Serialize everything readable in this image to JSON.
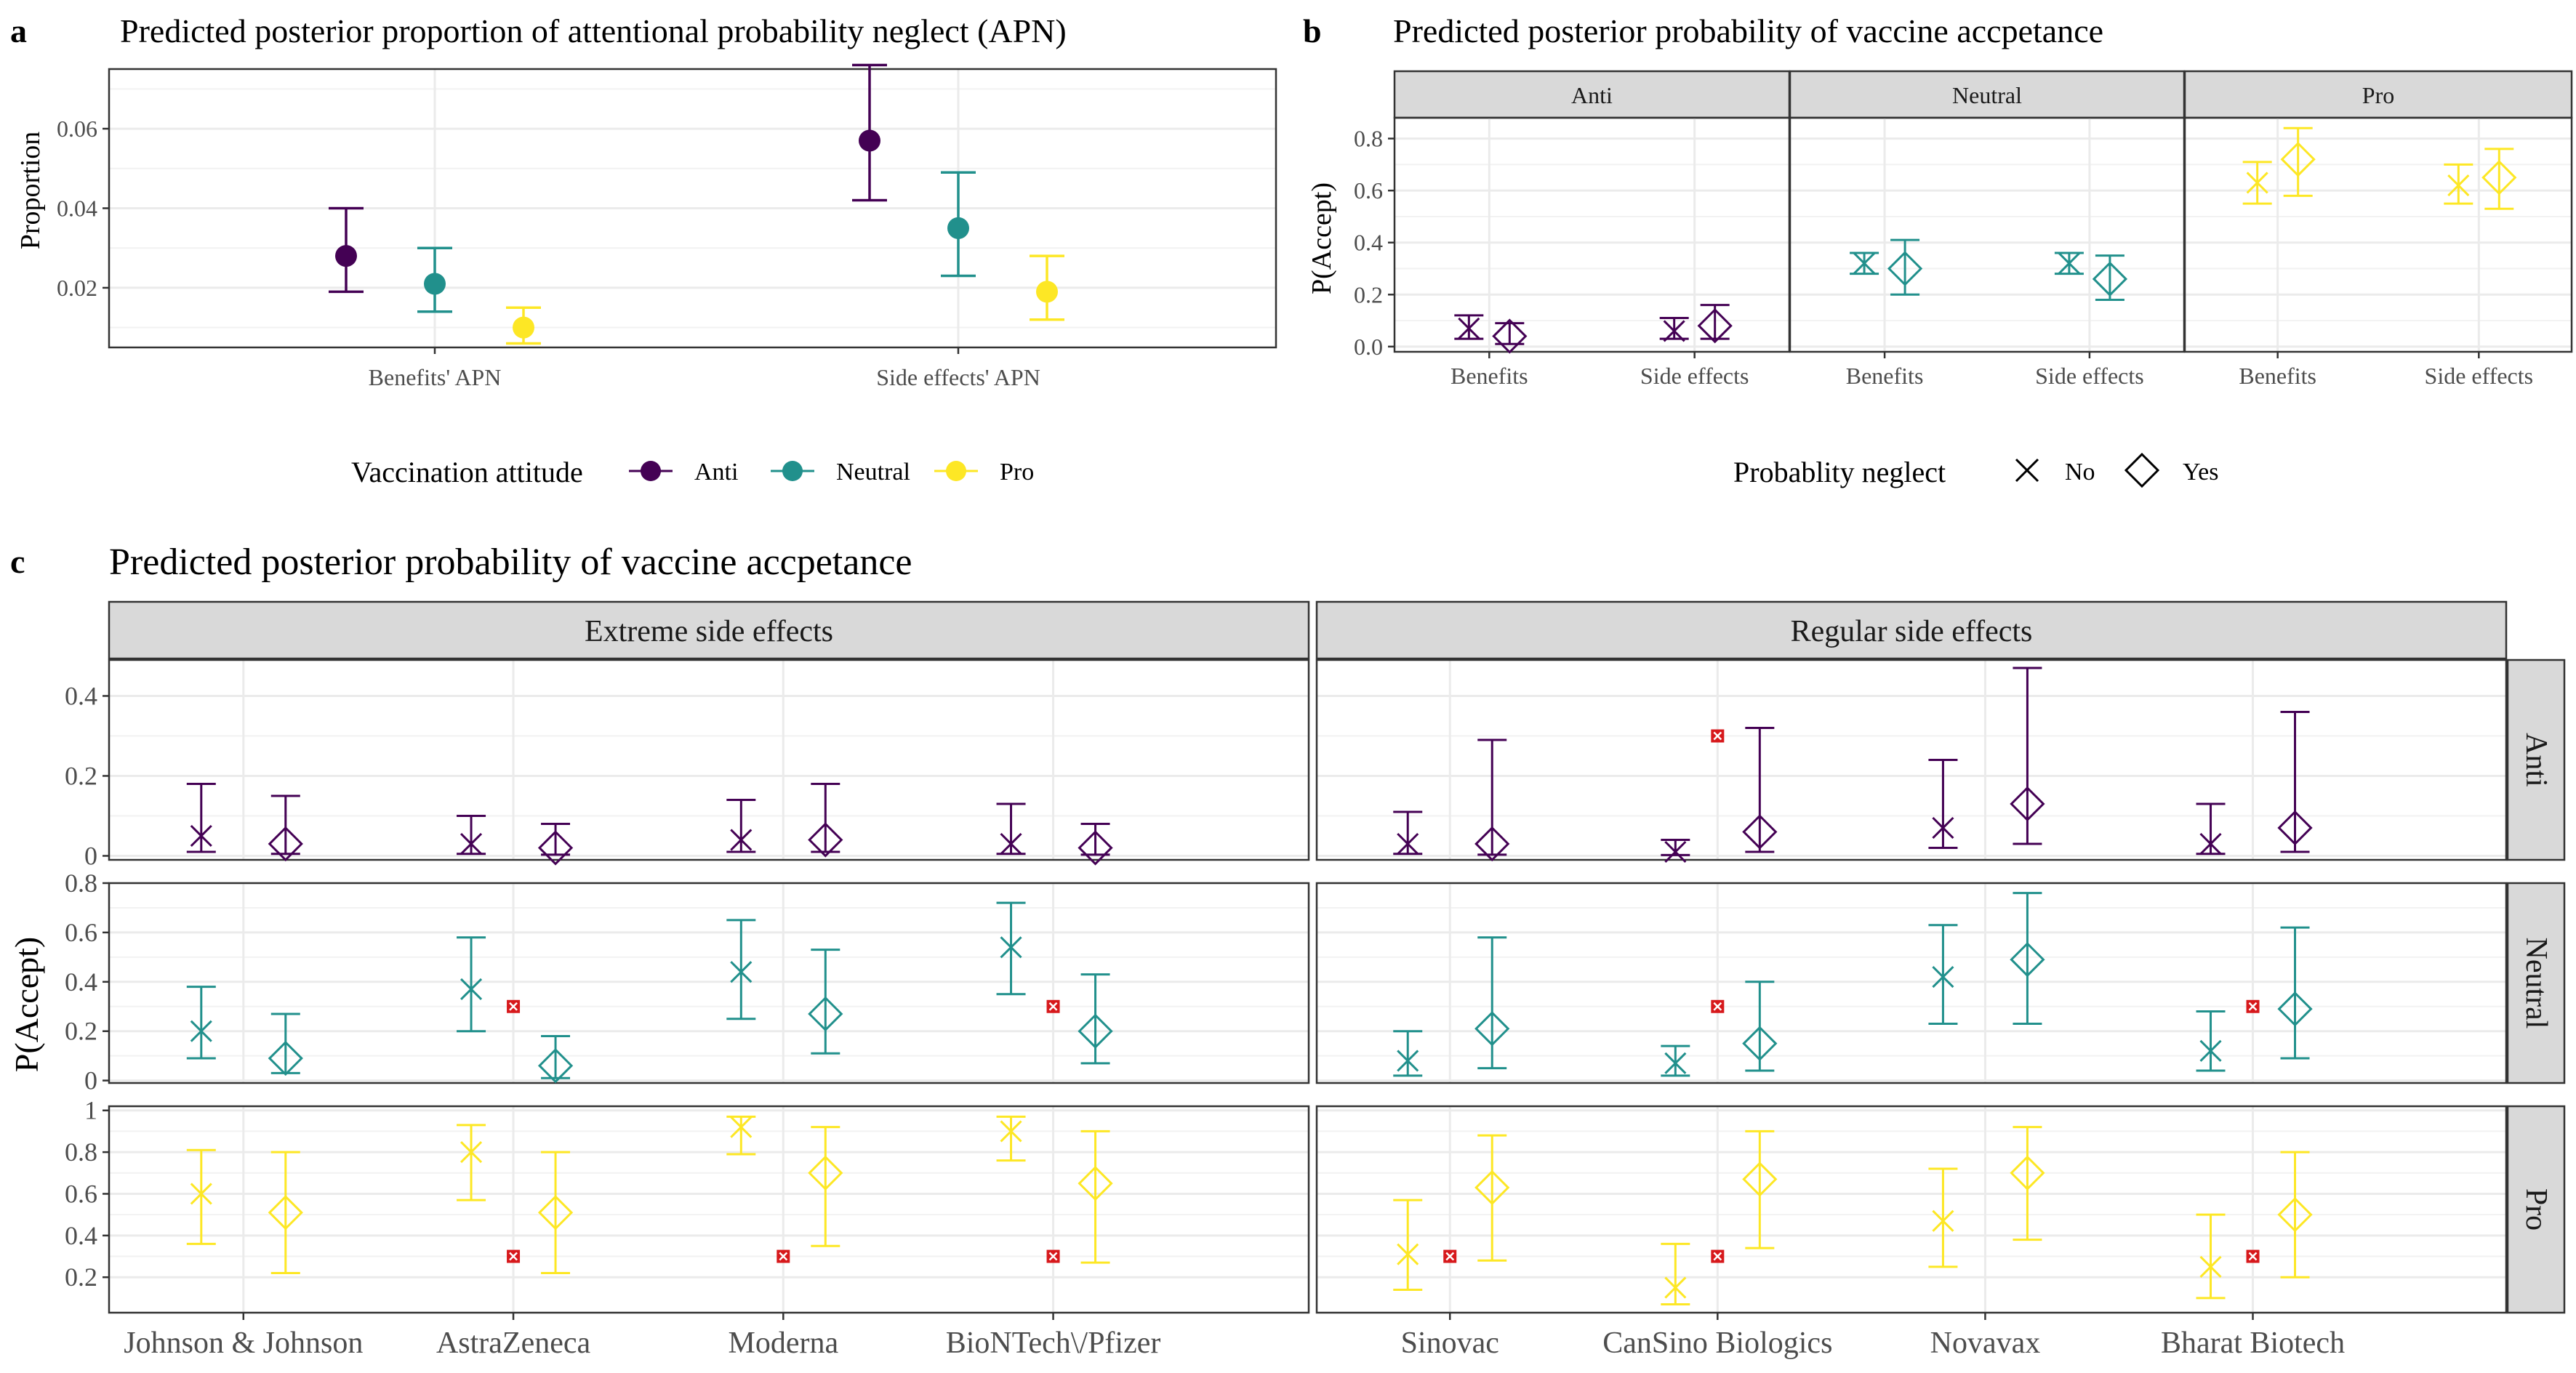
{
  "colors": {
    "Anti": "#440154",
    "Neutral": "#21908c",
    "Pro": "#fde725",
    "marker": "#d7191c"
  },
  "panel_labels": {
    "a": "a",
    "b": "b",
    "c": "c"
  },
  "legend_a": {
    "title": "Vaccination attitude",
    "items": [
      "Anti",
      "Neutral",
      "Pro"
    ]
  },
  "legend_b": {
    "title": "Probablity neglect",
    "items": [
      "No",
      "Yes"
    ]
  },
  "chart_data": [
    {
      "id": "a",
      "type": "scatter",
      "title": "Predicted posterior proportion of attentional probability neglect (APN)",
      "ylabel": "Proportion",
      "xlabel": "",
      "categories": [
        "Benefits' APN",
        "Side effects' APN"
      ],
      "ylim": [
        0.005,
        0.075
      ],
      "yticks": [
        "0.02",
        "0.04",
        "0.06"
      ],
      "series": [
        {
          "name": "Anti",
          "values": [
            0.028,
            0.057
          ],
          "lower": [
            0.019,
            0.042
          ],
          "upper": [
            0.04,
            0.076
          ]
        },
        {
          "name": "Neutral",
          "values": [
            0.021,
            0.035
          ],
          "lower": [
            0.014,
            0.023
          ],
          "upper": [
            0.03,
            0.049
          ]
        },
        {
          "name": "Pro",
          "values": [
            0.01,
            0.019
          ],
          "lower": [
            0.006,
            0.012
          ],
          "upper": [
            0.015,
            0.028
          ]
        }
      ]
    },
    {
      "id": "b",
      "type": "scatter",
      "title": "Predicted posterior probability of vaccine accpetance",
      "ylabel": "P(Accept)",
      "xlabel": "",
      "facets": [
        "Anti",
        "Neutral",
        "Pro"
      ],
      "categories": [
        "Benefits",
        "Side effects"
      ],
      "ylim": [
        -0.02,
        0.88
      ],
      "yticks": [
        "0.0",
        "0.2",
        "0.4",
        "0.6",
        "0.8"
      ],
      "series": [
        {
          "facet": "Anti",
          "neglect": "No",
          "values": [
            0.07,
            0.06
          ],
          "lower": [
            0.03,
            0.03
          ],
          "upper": [
            0.12,
            0.11
          ]
        },
        {
          "facet": "Anti",
          "neglect": "Yes",
          "values": [
            0.04,
            0.08
          ],
          "lower": [
            0.01,
            0.03
          ],
          "upper": [
            0.09,
            0.16
          ]
        },
        {
          "facet": "Neutral",
          "neglect": "No",
          "values": [
            0.32,
            0.32
          ],
          "lower": [
            0.28,
            0.28
          ],
          "upper": [
            0.36,
            0.36
          ]
        },
        {
          "facet": "Neutral",
          "neglect": "Yes",
          "values": [
            0.3,
            0.26
          ],
          "lower": [
            0.2,
            0.18
          ],
          "upper": [
            0.41,
            0.35
          ]
        },
        {
          "facet": "Pro",
          "neglect": "No",
          "values": [
            0.63,
            0.62
          ],
          "lower": [
            0.55,
            0.55
          ],
          "upper": [
            0.71,
            0.7
          ]
        },
        {
          "facet": "Pro",
          "neglect": "Yes",
          "values": [
            0.72,
            0.65
          ],
          "lower": [
            0.58,
            0.53
          ],
          "upper": [
            0.84,
            0.76
          ]
        }
      ]
    },
    {
      "id": "c",
      "type": "scatter",
      "title": "Predicted posterior probability of vaccine accpetance",
      "ylabel": "P(Accept)",
      "xlabel": "",
      "col_facets": [
        "Extreme side effects",
        "Regular side effects"
      ],
      "row_facets": [
        "Anti",
        "Neutral",
        "Pro"
      ],
      "categories": [
        [
          "Johnson & Johnson",
          "AstraZeneca",
          "Moderna",
          "BioNTech\\/Pfizer"
        ],
        [
          "Sinovac",
          "CanSino Biologics",
          "Novavax",
          "Bharat Biotech"
        ]
      ],
      "rows": [
        {
          "name": "Anti",
          "ylim": [
            -0.01,
            0.49
          ],
          "yticks": [
            "0",
            "0.2",
            "0.4"
          ],
          "marker_y": 0.3,
          "cols": [
            {
              "no": {
                "values": [
                  0.05,
                  0.03,
                  0.04,
                  0.03
                ],
                "lower": [
                  0.01,
                  0.005,
                  0.01,
                  0.005
                ],
                "upper": [
                  0.18,
                  0.1,
                  0.14,
                  0.13
                ]
              },
              "yes": {
                "values": [
                  0.03,
                  0.02,
                  0.04,
                  0.02
                ],
                "lower": [
                  0.005,
                  0.003,
                  0.01,
                  0.003
                ],
                "upper": [
                  0.15,
                  0.08,
                  0.18,
                  0.08
                ]
              },
              "markers": [
                false,
                false,
                false,
                false
              ]
            },
            {
              "no": {
                "values": [
                  0.03,
                  0.01,
                  0.07,
                  0.03
                ],
                "lower": [
                  0.005,
                  0.002,
                  0.02,
                  0.005
                ],
                "upper": [
                  0.11,
                  0.04,
                  0.24,
                  0.13
                ]
              },
              "yes": {
                "values": [
                  0.03,
                  0.06,
                  0.13,
                  0.07
                ],
                "lower": [
                  0.003,
                  0.01,
                  0.03,
                  0.01
                ],
                "upper": [
                  0.29,
                  0.32,
                  0.47,
                  0.36
                ]
              },
              "markers": [
                false,
                true,
                false,
                false
              ]
            }
          ]
        },
        {
          "name": "Neutral",
          "ylim": [
            -0.01,
            0.8
          ],
          "yticks": [
            "0",
            "0.2",
            "0.4",
            "0.6",
            "0.8"
          ],
          "marker_y": 0.3,
          "cols": [
            {
              "no": {
                "values": [
                  0.2,
                  0.37,
                  0.44,
                  0.54
                ],
                "lower": [
                  0.09,
                  0.2,
                  0.25,
                  0.35
                ],
                "upper": [
                  0.38,
                  0.58,
                  0.65,
                  0.72
                ]
              },
              "yes": {
                "values": [
                  0.09,
                  0.06,
                  0.27,
                  0.2
                ],
                "lower": [
                  0.03,
                  0.01,
                  0.11,
                  0.07
                ],
                "upper": [
                  0.27,
                  0.18,
                  0.53,
                  0.43
                ]
              },
              "markers": [
                false,
                true,
                false,
                true
              ]
            },
            {
              "no": {
                "values": [
                  0.08,
                  0.07,
                  0.42,
                  0.12
                ],
                "lower": [
                  0.02,
                  0.02,
                  0.23,
                  0.04
                ],
                "upper": [
                  0.2,
                  0.14,
                  0.63,
                  0.28
                ]
              },
              "yes": {
                "values": [
                  0.21,
                  0.15,
                  0.49,
                  0.29
                ],
                "lower": [
                  0.05,
                  0.04,
                  0.23,
                  0.09
                ],
                "upper": [
                  0.58,
                  0.4,
                  0.76,
                  0.62
                ]
              },
              "markers": [
                false,
                true,
                false,
                true
              ]
            }
          ]
        },
        {
          "name": "Pro",
          "ylim": [
            0.03,
            1.02
          ],
          "yticks": [
            "0.2",
            "0.4",
            "0.6",
            "0.8",
            "1"
          ],
          "marker_y": 0.3,
          "cols": [
            {
              "no": {
                "values": [
                  0.6,
                  0.8,
                  0.92,
                  0.9
                ],
                "lower": [
                  0.36,
                  0.57,
                  0.79,
                  0.76
                ],
                "upper": [
                  0.81,
                  0.93,
                  0.97,
                  0.97
                ]
              },
              "yes": {
                "values": [
                  0.51,
                  0.51,
                  0.7,
                  0.65
                ],
                "lower": [
                  0.22,
                  0.22,
                  0.35,
                  0.27
                ],
                "upper": [
                  0.8,
                  0.8,
                  0.92,
                  0.9
                ]
              },
              "markers": [
                false,
                true,
                true,
                true
              ]
            },
            {
              "no": {
                "values": [
                  0.31,
                  0.15,
                  0.47,
                  0.25
                ],
                "lower": [
                  0.14,
                  0.07,
                  0.25,
                  0.1
                ],
                "upper": [
                  0.57,
                  0.36,
                  0.72,
                  0.5
                ]
              },
              "yes": {
                "values": [
                  0.63,
                  0.67,
                  0.7,
                  0.5
                ],
                "lower": [
                  0.28,
                  0.34,
                  0.38,
                  0.2
                ],
                "upper": [
                  0.88,
                  0.9,
                  0.92,
                  0.8
                ]
              },
              "markers": [
                true,
                true,
                false,
                true
              ]
            }
          ]
        }
      ]
    }
  ]
}
